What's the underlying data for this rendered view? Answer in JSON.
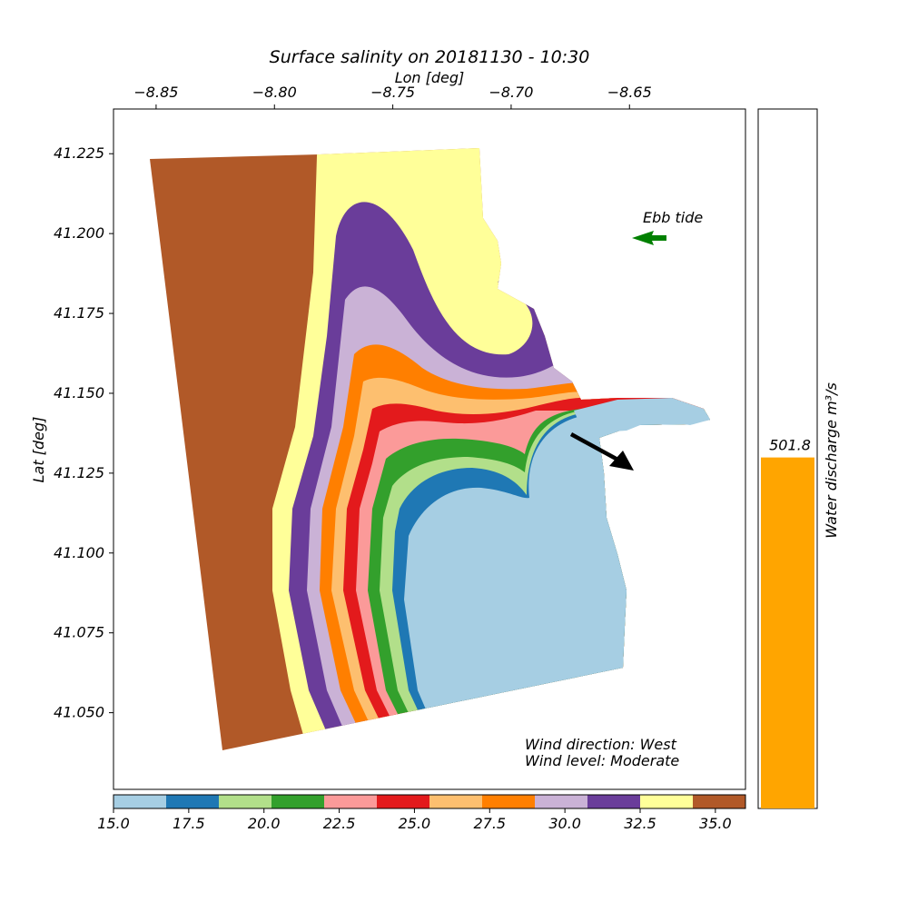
{
  "chart_data": {
    "type": "heatmap",
    "title": "Surface salinity on 20181130 - 10:30",
    "xlabel": "Lon [deg]",
    "ylabel": "Lat [deg]",
    "xlim": [
      -8.868,
      -8.601
    ],
    "ylim": [
      41.026,
      41.239
    ],
    "x_ticks": [
      "−8.85",
      "−8.80",
      "−8.75",
      "−8.70",
      "−8.65"
    ],
    "x_tick_values": [
      -8.85,
      -8.8,
      -8.75,
      -8.7,
      -8.65
    ],
    "y_ticks": [
      "41.225",
      "41.200",
      "41.175",
      "41.150",
      "41.125",
      "41.100",
      "41.075",
      "41.050"
    ],
    "y_tick_values": [
      41.225,
      41.2,
      41.175,
      41.15,
      41.125,
      41.1,
      41.075,
      41.05
    ],
    "colorbar": {
      "range": [
        15.0,
        36.0
      ],
      "ticks": [
        "15.0",
        "17.5",
        "20.0",
        "22.5",
        "25.0",
        "27.5",
        "30.0",
        "32.5",
        "35.0"
      ],
      "tick_values": [
        15.0,
        17.5,
        20.0,
        22.5,
        25.0,
        27.5,
        30.0,
        32.5,
        35.0
      ],
      "colors": [
        "#a6cee3",
        "#1f78b4",
        "#b2df8a",
        "#33a02c",
        "#fb9a99",
        "#e31a1c",
        "#fdbf6f",
        "#ff7f00",
        "#cab2d6",
        "#6a3d9a",
        "#ffff99",
        "#b15928"
      ]
    },
    "annotations": {
      "tide": "Ebb tide",
      "tide_arrow_color": "#008000",
      "wind_direction": "Wind direction: West",
      "wind_level": "Wind level: Moderate",
      "wind_arrow_color": "#000000"
    },
    "discharge": {
      "label": "Water discharge m³/s",
      "value": 501.8,
      "value_label": "501.8",
      "max": 1000,
      "bar_color": "#ffa500"
    }
  }
}
